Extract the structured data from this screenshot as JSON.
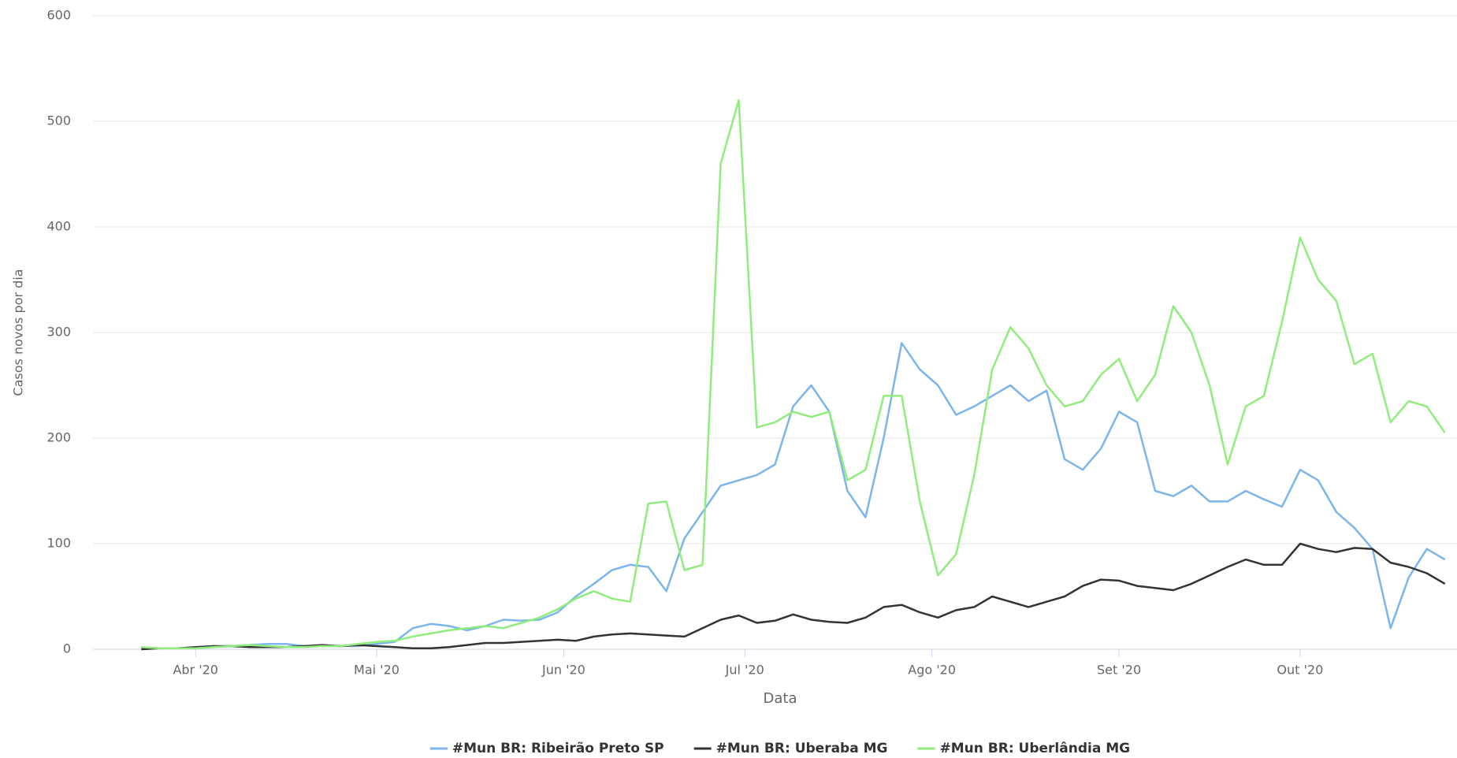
{
  "chart_data": {
    "type": "line",
    "x_label": "Data",
    "y_label": "Casos novos por dia",
    "xlim": [
      75,
      301
    ],
    "ylim": [
      0,
      600
    ],
    "xticks": [
      {
        "value": 92,
        "label": "Abr '20"
      },
      {
        "value": 122,
        "label": "Mai '20"
      },
      {
        "value": 153,
        "label": "Jun '20"
      },
      {
        "value": 183,
        "label": "Jul '20"
      },
      {
        "value": 214,
        "label": "Ago '20"
      },
      {
        "value": 245,
        "label": "Set '20"
      },
      {
        "value": 275,
        "label": "Out '20"
      }
    ],
    "yticks": [
      0,
      100,
      200,
      300,
      400,
      500,
      600
    ],
    "grid": true,
    "legend": "bottom",
    "x": [
      83,
      86,
      89,
      92,
      95,
      98,
      101,
      104,
      107,
      110,
      113,
      116,
      119,
      122,
      125,
      128,
      131,
      134,
      137,
      140,
      143,
      146,
      149,
      152,
      155,
      158,
      161,
      164,
      167,
      170,
      173,
      176,
      179,
      182,
      185,
      188,
      191,
      194,
      197,
      200,
      203,
      206,
      209,
      212,
      215,
      218,
      221,
      224,
      227,
      230,
      233,
      236,
      239,
      242,
      245,
      248,
      251,
      254,
      257,
      260,
      263,
      266,
      269,
      272,
      275,
      278,
      281,
      284,
      287,
      290,
      293,
      296,
      299
    ],
    "series": [
      {
        "name": "#Mun BR: Ribeirão Preto SP",
        "color": "#7cb5ec",
        "values": [
          1,
          1,
          1,
          1,
          2,
          3,
          4,
          5,
          5,
          3,
          3,
          3,
          3,
          5,
          7,
          20,
          24,
          22,
          18,
          22,
          28,
          27,
          28,
          35,
          50,
          62,
          75,
          80,
          78,
          55,
          105,
          130,
          155,
          160,
          165,
          175,
          230,
          250,
          225,
          150,
          125,
          200,
          290,
          265,
          250,
          222,
          230,
          240,
          250,
          235,
          245,
          180,
          170,
          190,
          225,
          215,
          150,
          145,
          155,
          140,
          140,
          150,
          142,
          135,
          170,
          160,
          130,
          115,
          95,
          20,
          68,
          95,
          85
        ]
      },
      {
        "name": "#Mun BR: Uberaba MG",
        "color": "#333333",
        "values": [
          0,
          1,
          1,
          2,
          3,
          3,
          2,
          2,
          2,
          3,
          4,
          3,
          4,
          3,
          2,
          1,
          1,
          2,
          4,
          6,
          6,
          7,
          8,
          9,
          8,
          12,
          14,
          15,
          14,
          13,
          12,
          20,
          28,
          32,
          25,
          27,
          33,
          28,
          26,
          25,
          30,
          40,
          42,
          35,
          30,
          37,
          40,
          50,
          45,
          40,
          45,
          50,
          60,
          66,
          65,
          60,
          58,
          56,
          62,
          70,
          78,
          85,
          80,
          80,
          100,
          95,
          92,
          96,
          95,
          82,
          78,
          72,
          62
        ]
      },
      {
        "name": "#Mun BR: Uberlândia MG",
        "color": "#90ed7d",
        "values": [
          2,
          1,
          1,
          1,
          2,
          3,
          4,
          3,
          2,
          2,
          3,
          3,
          5,
          7,
          8,
          12,
          15,
          18,
          20,
          22,
          20,
          25,
          30,
          38,
          48,
          55,
          48,
          45,
          138,
          140,
          75,
          80,
          460,
          520,
          210,
          215,
          225,
          220,
          225,
          160,
          170,
          240,
          240,
          140,
          70,
          90,
          165,
          265,
          305,
          285,
          250,
          230,
          235,
          260,
          275,
          235,
          260,
          325,
          300,
          250,
          175,
          230,
          240,
          310,
          390,
          350,
          330,
          270,
          280,
          215,
          235,
          230,
          205
        ]
      }
    ]
  }
}
